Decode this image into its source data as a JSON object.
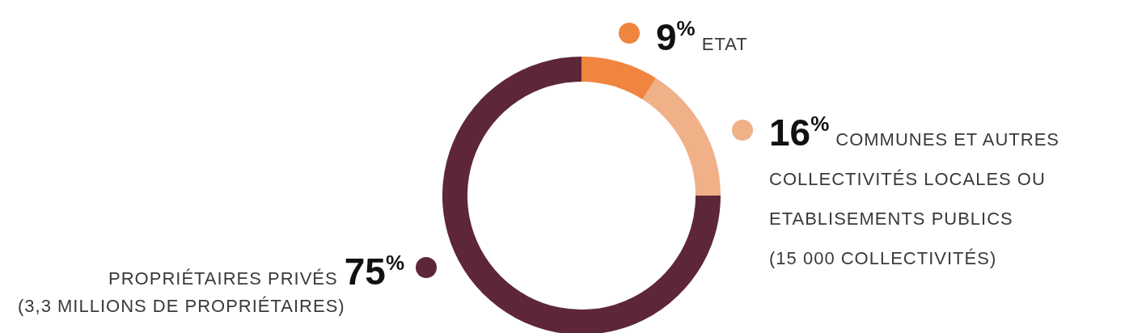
{
  "chart_data": {
    "type": "donut",
    "categories": [
      "ETAT",
      "COMMUNES ET AUTRES COLLECTIVITÉS LOCALES OU ETABLISEMENTS PUBLICS",
      "PROPRIÉTAIRES PRIVÉS"
    ],
    "values": [
      9,
      16,
      75
    ],
    "colors": [
      "#f0853f",
      "#f0b088",
      "#5e2737"
    ],
    "value_labels": [
      "9$^{%}$",
      "16$^{%}$",
      "75$^{%}$"
    ],
    "annotations": [
      "(15 000 COLLECTIVITÉS)",
      "(3,3 MILLIONS DE PROPRIÉTAIRES)"
    ]
  }
}
